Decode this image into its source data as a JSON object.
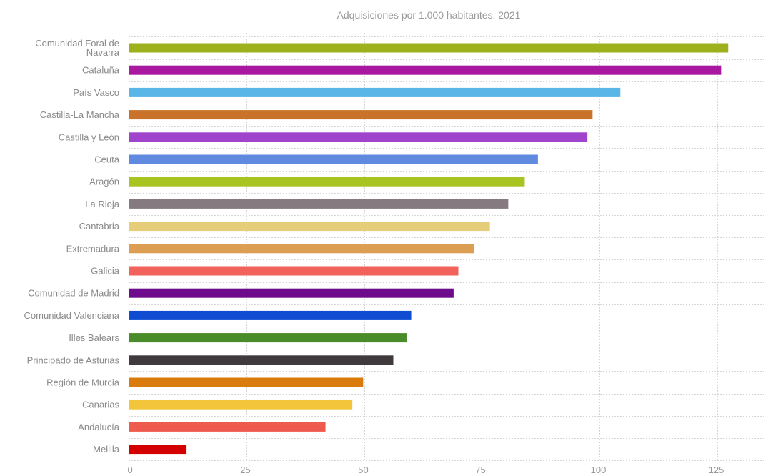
{
  "chart_data": {
    "type": "bar",
    "orientation": "horizontal",
    "title": "Adquisiciones por 1.000 habitantes. 2021",
    "xlabel": "",
    "ylabel": "",
    "xlim": [
      0,
      135
    ],
    "xticks": [
      0,
      25,
      50,
      75,
      100,
      125
    ],
    "grid": true,
    "categories": [
      [
        "Comunidad Foral de",
        "Navarra"
      ],
      [
        "Cataluña"
      ],
      [
        "País Vasco"
      ],
      [
        "Castilla-La Mancha"
      ],
      [
        "Castilla y León"
      ],
      [
        "Ceuta"
      ],
      [
        "Aragón"
      ],
      [
        "La Rioja"
      ],
      [
        "Cantabria"
      ],
      [
        "Extremadura"
      ],
      [
        "Galicia"
      ],
      [
        "Comunidad de Madrid"
      ],
      [
        "Comunidad Valenciana"
      ],
      [
        "Illes Balears"
      ],
      [
        "Principado de Asturias"
      ],
      [
        "Región de Murcia"
      ],
      [
        "Canarias"
      ],
      [
        "Andalucía"
      ],
      [
        "Melilla"
      ]
    ],
    "values": [
      127.3,
      125.8,
      104.4,
      98.5,
      97.4,
      86.9,
      84.1,
      80.6,
      76.7,
      73.3,
      70.0,
      69.0,
      60.0,
      59.0,
      56.2,
      49.8,
      47.5,
      41.8,
      12.3
    ],
    "colors": [
      "#9cb11b",
      "#a9199f",
      "#59b6e6",
      "#c8722a",
      "#a044cc",
      "#5f8ae0",
      "#a7c421",
      "#847a80",
      "#e6cd7a",
      "#dc9e52",
      "#f0625a",
      "#6c0c8c",
      "#0f4cd1",
      "#4a8c2a",
      "#403a3e",
      "#d97c0d",
      "#f2c53b",
      "#ee5a4e",
      "#d40000"
    ]
  }
}
